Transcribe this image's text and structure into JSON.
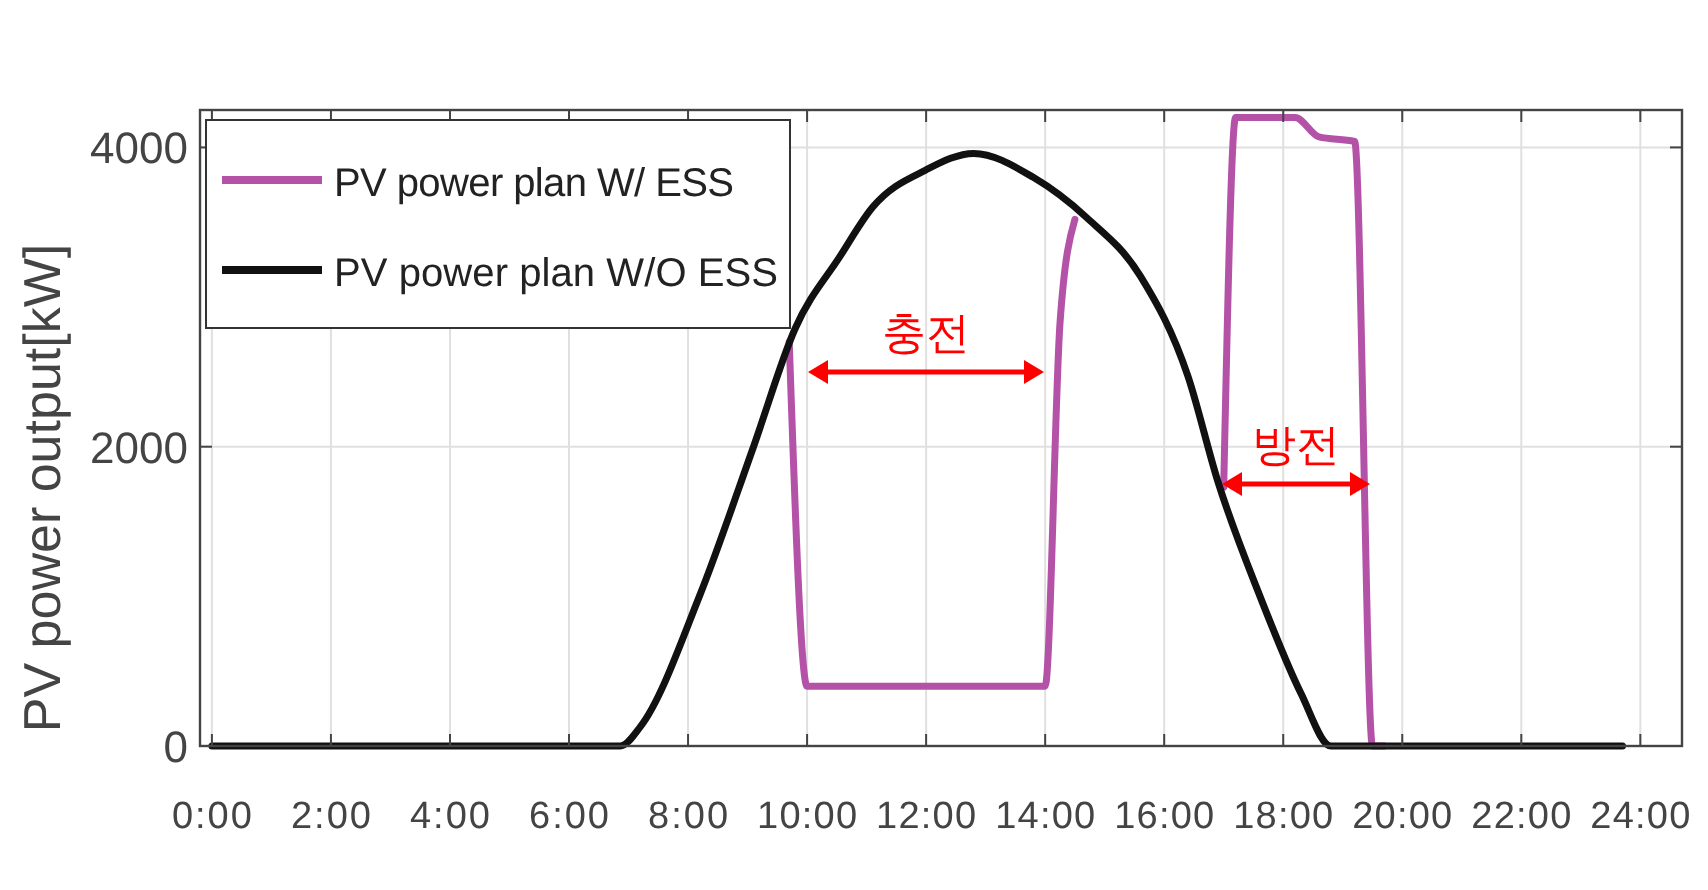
{
  "chart_data": {
    "type": "line",
    "ylabel": "PV power output[kW]",
    "xlim": [
      -0.2,
      24.7
    ],
    "ylim": [
      0,
      4250
    ],
    "xticks": [
      {
        "value": 0,
        "label": "0:00"
      },
      {
        "value": 2,
        "label": "2:00"
      },
      {
        "value": 4,
        "label": "4:00"
      },
      {
        "value": 6,
        "label": "6:00"
      },
      {
        "value": 8,
        "label": "8:00"
      },
      {
        "value": 10,
        "label": "10:00"
      },
      {
        "value": 12,
        "label": "12:00"
      },
      {
        "value": 14,
        "label": "14:00"
      },
      {
        "value": 16,
        "label": "16:00"
      },
      {
        "value": 18,
        "label": "18:00"
      },
      {
        "value": 20,
        "label": "20:00"
      },
      {
        "value": 22,
        "label": "22:00"
      },
      {
        "value": 24,
        "label": "24:00"
      }
    ],
    "yticks": [
      0,
      2000,
      4000
    ],
    "grid": true,
    "legend": "top left",
    "marker": "none",
    "line_style": "solid",
    "series": [
      {
        "name": "PV power plan W/ ESS",
        "color": "#b452a8",
        "x": [
          9.7,
          10.0,
          14.0,
          14.25,
          14.5,
          15.0,
          17.0,
          17.2,
          18.2,
          18.6,
          19.2,
          19.5,
          19.7
        ],
        "values": [
          2700,
          400,
          400,
          2830,
          3520,
          null,
          1730,
          4200,
          4200,
          4070,
          4040,
          0,
          0
        ]
      },
      {
        "name": "PV power plan W/O ESS",
        "color": "#111111",
        "x": [
          0,
          2,
          4,
          6,
          6.86,
          7.2,
          8.2,
          9.1,
          9.8,
          10.55,
          11.1,
          12.0,
          12.8,
          13.8,
          14.7,
          15.6,
          16.4,
          16.9,
          17.6,
          18.3,
          18.8,
          20,
          22,
          23.7
        ],
        "values": [
          0,
          0,
          0,
          0,
          0,
          130,
          1010,
          2000,
          2790,
          3270,
          3600,
          3850,
          3960,
          3800,
          3530,
          3140,
          2470,
          1770,
          1010,
          350,
          0,
          0,
          0,
          0
        ]
      }
    ],
    "annotations": [
      "충전",
      "방전"
    ]
  }
}
